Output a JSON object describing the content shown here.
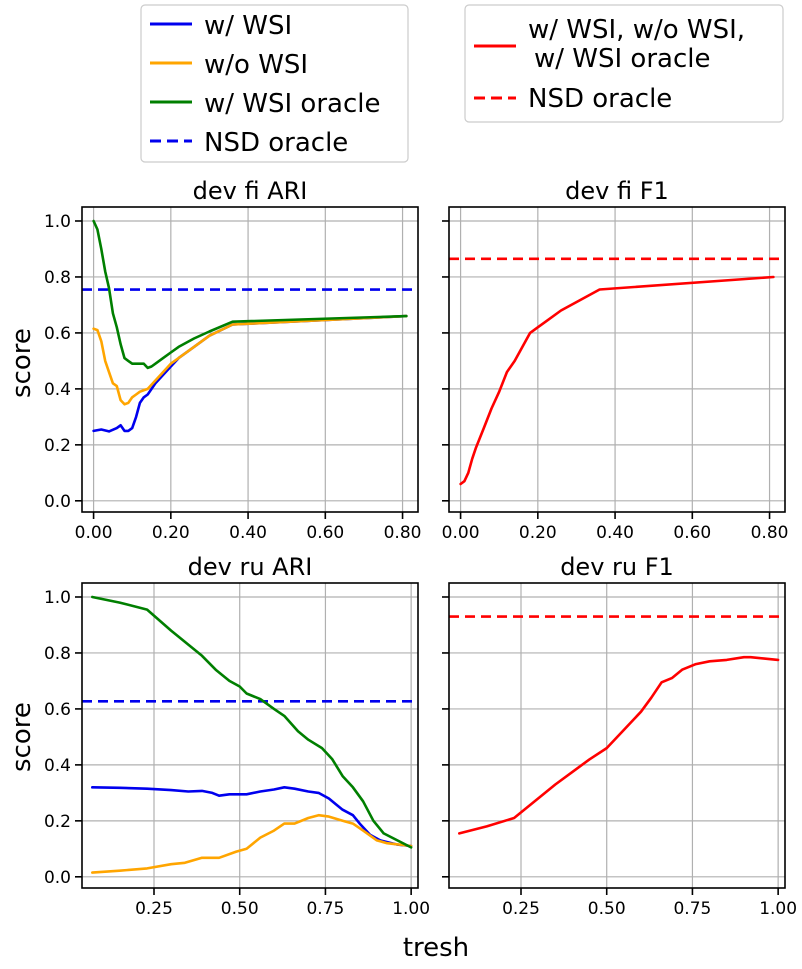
{
  "colors": {
    "blue": "#0000ee",
    "orange": "#ffa500",
    "green": "#007f00",
    "red": "#ff0000"
  },
  "legend_left": [
    {
      "label": "w/ WSI",
      "color": "#0000ee",
      "dash": false
    },
    {
      "label": "w/o WSI",
      "color": "#ffa500",
      "dash": false
    },
    {
      "label": "w/ WSI oracle",
      "color": "#007f00",
      "dash": false
    },
    {
      "label": "NSD oracle",
      "color": "#0000ee",
      "dash": true
    }
  ],
  "legend_right": [
    {
      "label_lines": [
        "w/ WSI, w/o WSI,",
        "w/ WSI oracle"
      ],
      "color": "#ff0000",
      "dash": false
    },
    {
      "label_lines": [
        "NSD oracle"
      ],
      "color": "#ff0000",
      "dash": true
    }
  ],
  "xlabel": "tresh",
  "ylabel": "score",
  "chart_data": [
    {
      "type": "line",
      "title": "dev fi ARI",
      "xlim": [
        -0.03,
        0.84
      ],
      "ylim": [
        -0.04,
        1.05
      ],
      "xticks": [
        0.0,
        0.2,
        0.4,
        0.6,
        0.8
      ],
      "xtick_labels": [
        "0.00",
        "0.20",
        "0.40",
        "0.60",
        "0.80"
      ],
      "yticks": [
        0.0,
        0.2,
        0.4,
        0.6,
        0.8,
        1.0
      ],
      "ytick_labels": [
        "0.0",
        "0.2",
        "0.4",
        "0.6",
        "0.8",
        "1.0"
      ],
      "show_yticklabels": true,
      "hlines": [
        {
          "name": "NSD oracle",
          "y": 0.755,
          "color": "#0000ee",
          "dash": true
        }
      ],
      "series": [
        {
          "name": "w/ WSI",
          "color": "#0000ee",
          "x": [
            0.0,
            0.02,
            0.04,
            0.06,
            0.07,
            0.08,
            0.09,
            0.1,
            0.11,
            0.12,
            0.13,
            0.14,
            0.16,
            0.18,
            0.2,
            0.22,
            0.26,
            0.3,
            0.36,
            0.81
          ],
          "y": [
            0.25,
            0.255,
            0.248,
            0.26,
            0.27,
            0.25,
            0.25,
            0.26,
            0.3,
            0.35,
            0.37,
            0.38,
            0.42,
            0.45,
            0.48,
            0.51,
            0.55,
            0.59,
            0.63,
            0.66
          ]
        },
        {
          "name": "w/o WSI",
          "color": "#ffa500",
          "x": [
            0.0,
            0.01,
            0.02,
            0.03,
            0.04,
            0.05,
            0.06,
            0.07,
            0.08,
            0.09,
            0.1,
            0.11,
            0.12,
            0.14,
            0.16,
            0.18,
            0.2,
            0.22,
            0.26,
            0.3,
            0.36,
            0.81
          ],
          "y": [
            0.615,
            0.61,
            0.57,
            0.5,
            0.46,
            0.42,
            0.41,
            0.36,
            0.345,
            0.35,
            0.37,
            0.38,
            0.39,
            0.4,
            0.43,
            0.46,
            0.49,
            0.51,
            0.55,
            0.59,
            0.63,
            0.66
          ]
        },
        {
          "name": "w/ WSI oracle",
          "color": "#007f00",
          "x": [
            0.0,
            0.01,
            0.02,
            0.03,
            0.04,
            0.05,
            0.06,
            0.07,
            0.08,
            0.09,
            0.1,
            0.11,
            0.12,
            0.13,
            0.14,
            0.15,
            0.16,
            0.18,
            0.2,
            0.22,
            0.26,
            0.3,
            0.36,
            0.81
          ],
          "y": [
            1.0,
            0.97,
            0.9,
            0.82,
            0.76,
            0.67,
            0.62,
            0.56,
            0.51,
            0.5,
            0.49,
            0.49,
            0.49,
            0.49,
            0.475,
            0.48,
            0.49,
            0.51,
            0.53,
            0.55,
            0.58,
            0.605,
            0.64,
            0.66
          ]
        }
      ]
    },
    {
      "type": "line",
      "title": "dev fi F1",
      "xlim": [
        -0.03,
        0.84
      ],
      "ylim": [
        -0.04,
        1.05
      ],
      "xticks": [
        0.0,
        0.2,
        0.4,
        0.6,
        0.8
      ],
      "xtick_labels": [
        "0.00",
        "0.20",
        "0.40",
        "0.60",
        "0.80"
      ],
      "yticks": [
        0.0,
        0.2,
        0.4,
        0.6,
        0.8,
        1.0
      ],
      "ytick_labels": [
        "0.0",
        "0.2",
        "0.4",
        "0.6",
        "0.8",
        "1.0"
      ],
      "show_yticklabels": false,
      "hlines": [
        {
          "name": "NSD oracle",
          "y": 0.865,
          "color": "#ff0000",
          "dash": true
        }
      ],
      "series": [
        {
          "name": "w/ WSI, w/o WSI, w/ WSI oracle",
          "color": "#ff0000",
          "x": [
            0.0,
            0.01,
            0.02,
            0.03,
            0.04,
            0.06,
            0.08,
            0.1,
            0.12,
            0.14,
            0.16,
            0.18,
            0.2,
            0.22,
            0.26,
            0.3,
            0.36,
            0.81
          ],
          "y": [
            0.06,
            0.07,
            0.1,
            0.15,
            0.19,
            0.26,
            0.33,
            0.39,
            0.46,
            0.5,
            0.55,
            0.6,
            0.62,
            0.64,
            0.68,
            0.71,
            0.755,
            0.8
          ]
        }
      ]
    },
    {
      "type": "line",
      "title": "dev ru ARI",
      "xlim": [
        0.04,
        1.02
      ],
      "ylim": [
        -0.04,
        1.05
      ],
      "xticks": [
        0.25,
        0.5,
        0.75,
        1.0
      ],
      "xtick_labels": [
        "0.25",
        "0.50",
        "0.75",
        "1.00"
      ],
      "yticks": [
        0.0,
        0.2,
        0.4,
        0.6,
        0.8,
        1.0
      ],
      "ytick_labels": [
        "0.0",
        "0.2",
        "0.4",
        "0.6",
        "0.8",
        "1.0"
      ],
      "show_yticklabels": true,
      "hlines": [
        {
          "name": "NSD oracle",
          "y": 0.627,
          "color": "#0000ee",
          "dash": true
        }
      ],
      "series": [
        {
          "name": "w/ WSI",
          "color": "#0000ee",
          "x": [
            0.07,
            0.15,
            0.23,
            0.3,
            0.35,
            0.39,
            0.42,
            0.44,
            0.47,
            0.52,
            0.56,
            0.6,
            0.63,
            0.66,
            0.7,
            0.73,
            0.76,
            0.78,
            0.8,
            0.83,
            0.85,
            0.88,
            0.91,
            0.96,
            1.0
          ],
          "y": [
            0.32,
            0.318,
            0.315,
            0.31,
            0.305,
            0.307,
            0.3,
            0.29,
            0.295,
            0.295,
            0.305,
            0.312,
            0.32,
            0.315,
            0.305,
            0.3,
            0.28,
            0.26,
            0.24,
            0.22,
            0.19,
            0.15,
            0.13,
            0.115,
            0.11
          ]
        },
        {
          "name": "w/o WSI",
          "color": "#ffa500",
          "x": [
            0.07,
            0.15,
            0.23,
            0.3,
            0.34,
            0.39,
            0.44,
            0.49,
            0.52,
            0.56,
            0.6,
            0.63,
            0.66,
            0.7,
            0.73,
            0.76,
            0.8,
            0.83,
            0.86,
            0.9,
            0.93,
            1.0
          ],
          "y": [
            0.015,
            0.022,
            0.03,
            0.045,
            0.05,
            0.068,
            0.068,
            0.09,
            0.1,
            0.14,
            0.165,
            0.19,
            0.19,
            0.21,
            0.22,
            0.215,
            0.2,
            0.19,
            0.165,
            0.13,
            0.12,
            0.11
          ]
        },
        {
          "name": "w/ WSI oracle",
          "color": "#007f00",
          "x": [
            0.07,
            0.15,
            0.23,
            0.3,
            0.35,
            0.39,
            0.43,
            0.47,
            0.5,
            0.52,
            0.56,
            0.6,
            0.63,
            0.67,
            0.7,
            0.74,
            0.77,
            0.8,
            0.83,
            0.86,
            0.89,
            0.92,
            0.96,
            1.0
          ],
          "y": [
            1.0,
            0.98,
            0.955,
            0.88,
            0.83,
            0.79,
            0.74,
            0.7,
            0.68,
            0.655,
            0.635,
            0.6,
            0.575,
            0.52,
            0.49,
            0.46,
            0.42,
            0.36,
            0.32,
            0.27,
            0.2,
            0.155,
            0.13,
            0.105
          ]
        }
      ]
    },
    {
      "type": "line",
      "title": "dev ru F1",
      "xlim": [
        0.04,
        1.02
      ],
      "ylim": [
        -0.04,
        1.05
      ],
      "xticks": [
        0.25,
        0.5,
        0.75,
        1.0
      ],
      "xtick_labels": [
        "0.25",
        "0.50",
        "0.75",
        "1.00"
      ],
      "yticks": [
        0.0,
        0.2,
        0.4,
        0.6,
        0.8,
        1.0
      ],
      "ytick_labels": [
        "0.0",
        "0.2",
        "0.4",
        "0.6",
        "0.8",
        "1.0"
      ],
      "show_yticklabels": false,
      "hlines": [
        {
          "name": "NSD oracle",
          "y": 0.93,
          "color": "#ff0000",
          "dash": true
        }
      ],
      "series": [
        {
          "name": "w/ WSI, w/o WSI, w/ WSI oracle",
          "color": "#ff0000",
          "x": [
            0.07,
            0.15,
            0.23,
            0.3,
            0.35,
            0.4,
            0.45,
            0.5,
            0.55,
            0.6,
            0.63,
            0.66,
            0.69,
            0.72,
            0.76,
            0.8,
            0.85,
            0.9,
            0.92,
            0.96,
            1.0
          ],
          "y": [
            0.155,
            0.18,
            0.21,
            0.28,
            0.33,
            0.375,
            0.42,
            0.46,
            0.525,
            0.59,
            0.64,
            0.695,
            0.71,
            0.74,
            0.76,
            0.77,
            0.775,
            0.785,
            0.785,
            0.78,
            0.775
          ]
        }
      ]
    }
  ]
}
